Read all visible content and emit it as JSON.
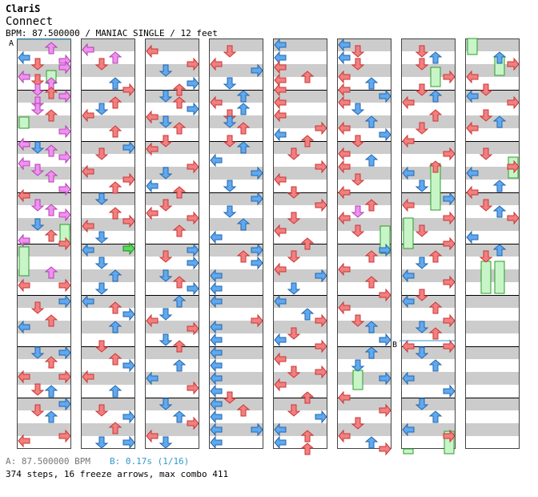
{
  "header": {
    "artist": "ClariS",
    "song_title": "Connect",
    "info_line": "BPM: 87.500000 / MANIAC SINGLE / 12 feet"
  },
  "markers": {
    "a": "A",
    "b": "B"
  },
  "footer": {
    "bpm_a": "A: 87.500000 BPM",
    "bpm_b": "B: 0.17s (1/16)",
    "stats": "374 steps, 16 freeze arrows, max combo 411"
  },
  "colors": {
    "quarter_arrow": "#f08080",
    "eighth_arrow": "#60a8f0",
    "sixteenth_arrow": "#f090f0",
    "freeze_body": "#c8f5c8",
    "freeze_border": "#2c9c2c",
    "stripe": "#cccccc",
    "column_border": "#444444",
    "bpm_line": "#3399cc"
  },
  "chart_data": {
    "type": "step-chart",
    "measures_per_column": 8,
    "columns": 8,
    "lanes": [
      "left",
      "down",
      "up",
      "right"
    ],
    "total_steps": 374,
    "freeze_arrows": 16,
    "max_combo": 411
  }
}
